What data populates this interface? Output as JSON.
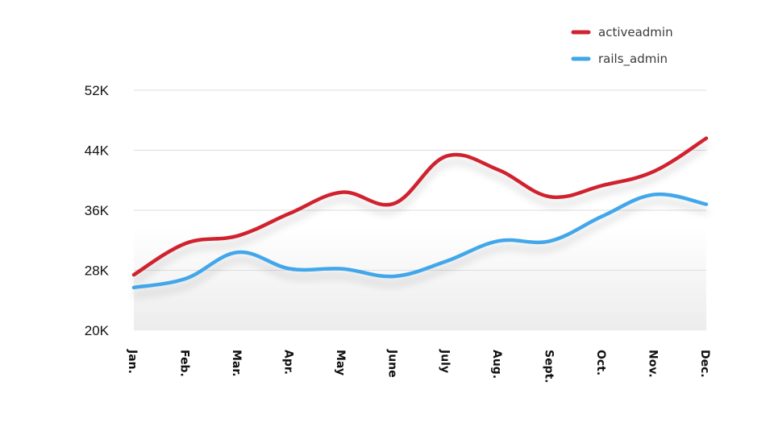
{
  "chart_data": {
    "type": "line",
    "categories": [
      "Jan.",
      "Feb.",
      "Mar.",
      "Apr.",
      "May",
      "June",
      "July",
      "Aug.",
      "Sept.",
      "Oct.",
      "Nov.",
      "Dec."
    ],
    "series": [
      {
        "name": "activeadmin",
        "color": "#d0232f",
        "values": [
          27400,
          31600,
          32600,
          35600,
          38400,
          36900,
          43200,
          41400,
          37800,
          39300,
          41200,
          45600
        ]
      },
      {
        "name": "rails_admin",
        "color": "#42a7ea",
        "values": [
          25700,
          26900,
          30400,
          28200,
          28200,
          27200,
          29200,
          31900,
          31900,
          35200,
          38100,
          36800
        ]
      }
    ],
    "y_ticks": [
      "20K",
      "28K",
      "36K",
      "44K",
      "52K"
    ],
    "ylim": [
      20000,
      52000
    ],
    "grid": true,
    "legend_position": "top-right",
    "xlabel": "",
    "ylabel": "",
    "title": ""
  }
}
